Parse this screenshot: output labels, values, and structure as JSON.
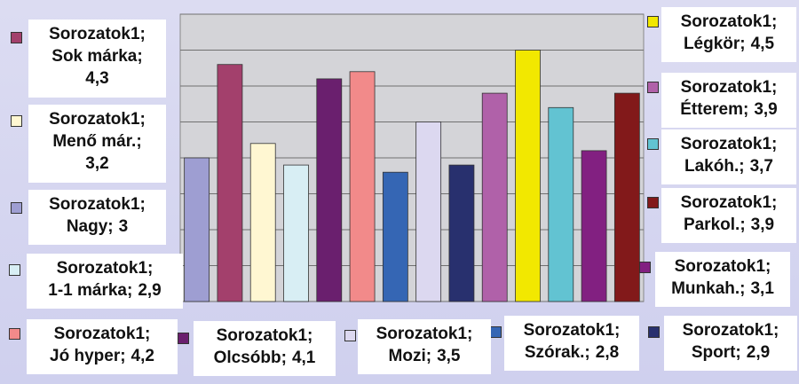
{
  "chart_data": {
    "type": "bar",
    "series_name": "Sorozatok1",
    "label_separator": ";",
    "categories": [
      "Nagy",
      "Sok márka",
      "Menő már.",
      "1-1 márka",
      "Olcsóbb",
      "Jó hyper",
      "Szórak.",
      "Mozi",
      "Sport",
      "Étterem",
      "Légkör",
      "Lakóh.",
      "Munkah.",
      "Parkol."
    ],
    "values": [
      3,
      4.3,
      3.2,
      2.9,
      4.1,
      4.2,
      2.8,
      3.5,
      2.9,
      3.9,
      4.5,
      3.7,
      3.1,
      3.9
    ],
    "value_labels": [
      "3",
      "4,3",
      "3,2",
      "2,9",
      "4,1",
      "4,2",
      "2,8",
      "3,5",
      "2,9",
      "3,9",
      "4,5",
      "3,7",
      "3,1",
      "3,9"
    ],
    "colors": [
      "#9e9ed2",
      "#a3406c",
      "#fff7d2",
      "#d8eef4",
      "#6a1f6e",
      "#f28a8a",
      "#3566b4",
      "#dcd8f0",
      "#28306e",
      "#b061a9",
      "#f2e800",
      "#62c3d2",
      "#822081",
      "#82191a"
    ],
    "ylim": [
      1,
      5
    ],
    "yticks": [
      1,
      1.5,
      2,
      2.5,
      3,
      3.5,
      4,
      4.5,
      5
    ],
    "grid": true
  }
}
